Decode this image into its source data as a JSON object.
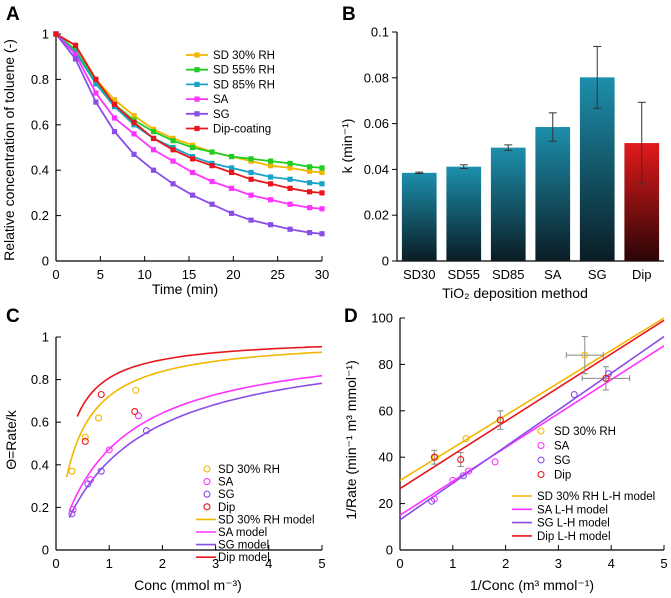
{
  "colors": {
    "sd30": "#f2b700",
    "sd55": "#22cc22",
    "sd85": "#1aa3c8",
    "sa": "#ff33ff",
    "sg": "#8a4ee8",
    "dip": "#e8161c",
    "bar_top": "#1d8fac",
    "bar_bottom": "#0a1c24",
    "dip_top": "#e31a1c",
    "dip_bottom": "#2a0506"
  },
  "chart_data": [
    {
      "panel": "A",
      "type": "line",
      "xlabel": "Time (min)",
      "ylabel": "Relative concentration of toluene (-)",
      "xlim": [
        0,
        30
      ],
      "ylim": [
        0,
        1
      ],
      "xticks": [
        0,
        5,
        10,
        15,
        20,
        25,
        30
      ],
      "yticks": [
        0,
        0.2,
        0.4,
        0.6,
        0.8,
        1
      ],
      "x": [
        0,
        2.2,
        4.5,
        6.6,
        8.8,
        11.0,
        13.2,
        15.4,
        17.6,
        19.8,
        22.0,
        24.2,
        26.4,
        28.6,
        30
      ],
      "series": [
        {
          "name": "SD 30% RH",
          "color": "sd30",
          "marker": "square",
          "values": [
            1.0,
            0.95,
            0.8,
            0.71,
            0.64,
            0.58,
            0.54,
            0.51,
            0.48,
            0.46,
            0.44,
            0.42,
            0.41,
            0.395,
            0.39
          ]
        },
        {
          "name": "SD 55% RH",
          "color": "sd55",
          "marker": "square",
          "values": [
            1.0,
            0.93,
            0.79,
            0.69,
            0.62,
            0.57,
            0.53,
            0.5,
            0.48,
            0.46,
            0.45,
            0.44,
            0.43,
            0.415,
            0.41
          ]
        },
        {
          "name": "SD 85% RH",
          "color": "sd85",
          "marker": "square",
          "values": [
            1.0,
            0.92,
            0.78,
            0.68,
            0.6,
            0.54,
            0.5,
            0.46,
            0.43,
            0.41,
            0.39,
            0.37,
            0.36,
            0.345,
            0.34
          ]
        },
        {
          "name": "SA",
          "color": "sa",
          "marker": "square",
          "values": [
            1.0,
            0.91,
            0.74,
            0.63,
            0.56,
            0.49,
            0.44,
            0.39,
            0.35,
            0.32,
            0.29,
            0.27,
            0.25,
            0.235,
            0.23
          ]
        },
        {
          "name": "SG",
          "color": "sg",
          "marker": "square",
          "values": [
            1.0,
            0.89,
            0.7,
            0.57,
            0.47,
            0.4,
            0.34,
            0.29,
            0.25,
            0.21,
            0.18,
            0.16,
            0.14,
            0.125,
            0.12
          ]
        },
        {
          "name": "Dip-coating",
          "color": "dip",
          "marker": "square",
          "values": [
            1.0,
            0.95,
            0.8,
            0.69,
            0.61,
            0.54,
            0.49,
            0.45,
            0.42,
            0.39,
            0.36,
            0.34,
            0.32,
            0.305,
            0.3
          ]
        }
      ],
      "legend": "top-right"
    },
    {
      "panel": "B",
      "type": "bar",
      "xlabel": "TiO₂ deposition method",
      "ylabel": "k (min⁻¹)",
      "ylim": [
        0,
        0.1
      ],
      "yticks": [
        0,
        0.02,
        0.04,
        0.06,
        0.08,
        0.1
      ],
      "ytick_labels": [
        "0",
        "0.02",
        "0.04",
        "0.06",
        "0.08",
        "0.1"
      ],
      "categories": [
        "SD30",
        "SD55",
        "SD85",
        "SA",
        "SG",
        "Dip"
      ],
      "values": [
        0.0385,
        0.0412,
        0.0495,
        0.0585,
        0.0802,
        0.0515
      ],
      "errors": [
        0.0003,
        0.0008,
        0.0012,
        0.0062,
        0.0135,
        0.0178
      ]
    },
    {
      "panel": "C",
      "type": "scatter",
      "xlabel": "Conc (mmol m⁻³)",
      "ylabel": "Θ=Rate/k",
      "xlim": [
        0,
        5
      ],
      "ylim": [
        0,
        1
      ],
      "xticks": [
        0,
        1,
        2,
        3,
        4,
        5
      ],
      "yticks": [
        0,
        0.2,
        0.4,
        0.6,
        0.8,
        1
      ],
      "series": [
        {
          "name": "SD 30% RH",
          "color": "sd30",
          "marker": "circle",
          "x": [
            0.3,
            0.55,
            0.8,
            1.5
          ],
          "values": [
            0.37,
            0.53,
            0.62,
            0.75
          ]
        },
        {
          "name": "SA",
          "color": "sa",
          "marker": "circle",
          "x": [
            0.32,
            0.65,
            1.0,
            1.55
          ],
          "values": [
            0.19,
            0.33,
            0.47,
            0.63
          ]
        },
        {
          "name": "SG",
          "color": "sg",
          "marker": "circle",
          "x": [
            0.3,
            0.6,
            0.85,
            1.7
          ],
          "values": [
            0.17,
            0.31,
            0.37,
            0.56
          ]
        },
        {
          "name": "Dip",
          "color": "dip",
          "marker": "circle",
          "x": [
            0.55,
            0.85,
            1.48
          ],
          "values": [
            0.51,
            0.73,
            0.65
          ]
        }
      ],
      "models": [
        {
          "name": "SD 30% RH model",
          "color": "sd30",
          "K": 2.6,
          "x_start": 0.2
        },
        {
          "name": "SA model",
          "color": "sa",
          "K": 0.9,
          "x_start": 0.25
        },
        {
          "name": "SG model",
          "color": "sg",
          "K": 0.72,
          "x_start": 0.25
        },
        {
          "name": "Dip model",
          "color": "dip",
          "K": 4.2,
          "x_start": 0.4
        }
      ],
      "legend": "bottom-right"
    },
    {
      "panel": "D",
      "type": "scatter",
      "xlabel": "1/Conc (m³ mmol⁻¹)",
      "ylabel": "1/Rate (min⁻¹ m³ mmol⁻¹)",
      "xlim": [
        0,
        5
      ],
      "ylim": [
        0,
        100
      ],
      "xticks": [
        0,
        1,
        2,
        3,
        4,
        5
      ],
      "yticks": [
        0,
        20,
        40,
        60,
        80,
        100
      ],
      "series": [
        {
          "name": "SD 30% RH",
          "color": "sd30",
          "marker": "circle",
          "x": [
            0.67,
            1.25,
            1.9,
            3.5
          ],
          "values": [
            40,
            48,
            56,
            84
          ]
        },
        {
          "name": "SA",
          "color": "sa",
          "marker": "circle",
          "x": [
            0.65,
            1.0,
            1.3,
            1.8
          ],
          "values": [
            22,
            30,
            34,
            38
          ]
        },
        {
          "name": "SG",
          "color": "sg",
          "marker": "circle",
          "x": [
            0.6,
            1.2,
            3.3,
            3.95
          ],
          "values": [
            21,
            32,
            67,
            76
          ]
        },
        {
          "name": "Dip",
          "color": "dip",
          "marker": "circle",
          "x": [
            0.65,
            1.15,
            1.9,
            3.9
          ],
          "values": [
            40,
            39,
            56,
            74
          ]
        }
      ],
      "error_bars": [
        {
          "x": 0.65,
          "y": 40,
          "dy": 3
        },
        {
          "x": 1.15,
          "y": 39,
          "dy": 3
        },
        {
          "x": 1.9,
          "y": 56,
          "dy": 4
        },
        {
          "x": 3.5,
          "y": 84,
          "dx": 0.35,
          "dy": 8
        },
        {
          "x": 3.9,
          "y": 74,
          "dx": 0.45,
          "dy": 5
        }
      ],
      "models": [
        {
          "name": "SD 30% RH L-H model",
          "color": "sd30",
          "x0": 0,
          "y0": 30.0,
          "x1": 5,
          "y1": 100
        },
        {
          "name": "SA L-H model",
          "color": "sa",
          "x0": 0,
          "y0": 15.0,
          "x1": 5,
          "y1": 88
        },
        {
          "name": "SG L-H model",
          "color": "sg",
          "x0": 0,
          "y0": 13.0,
          "x1": 5,
          "y1": 92
        },
        {
          "name": "Dip L-H model",
          "color": "dip",
          "x0": 0,
          "y0": 26.5,
          "x1": 5,
          "y1": 99
        }
      ],
      "legend": "bottom-right"
    }
  ]
}
